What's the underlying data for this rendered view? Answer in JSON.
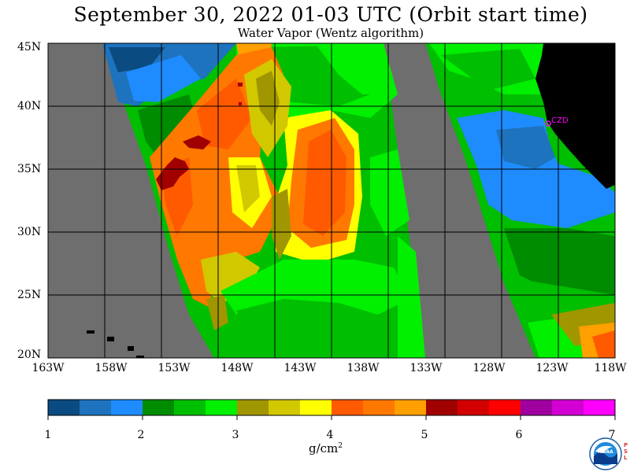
{
  "title": "September 30, 2022  01-03 UTC  (Orbit start time)",
  "subtitle": "Water Vapor (Wentz algorithm)",
  "map": {
    "lat_labels": [
      "45N",
      "40N",
      "35N",
      "30N",
      "25N",
      "20N"
    ],
    "lon_labels": [
      "163W",
      "158W",
      "153W",
      "148W",
      "143W",
      "138W",
      "133W",
      "128W",
      "123W",
      "118W"
    ],
    "marker_label": "CZD",
    "colors": {
      "land": "#000000",
      "no_data": "#6e6e6e",
      "grid": "#000000",
      "marker": "#ff00ff"
    }
  },
  "colorbar": {
    "colors": [
      "#0a4b82",
      "#1e73be",
      "#1e8cff",
      "#008c00",
      "#00be00",
      "#00f000",
      "#a09600",
      "#d2c800",
      "#ffff00",
      "#ff5a00",
      "#ff7800",
      "#ffa000",
      "#a00000",
      "#d20000",
      "#ff0000",
      "#a000a0",
      "#d200d2",
      "#ff00ff"
    ],
    "tick_labels": [
      "1",
      "2",
      "3",
      "4",
      "5",
      "6",
      "7"
    ],
    "units": "g/cm",
    "units_power": "2"
  },
  "logo": {
    "text": "NOAA",
    "side_text": "PSL"
  }
}
